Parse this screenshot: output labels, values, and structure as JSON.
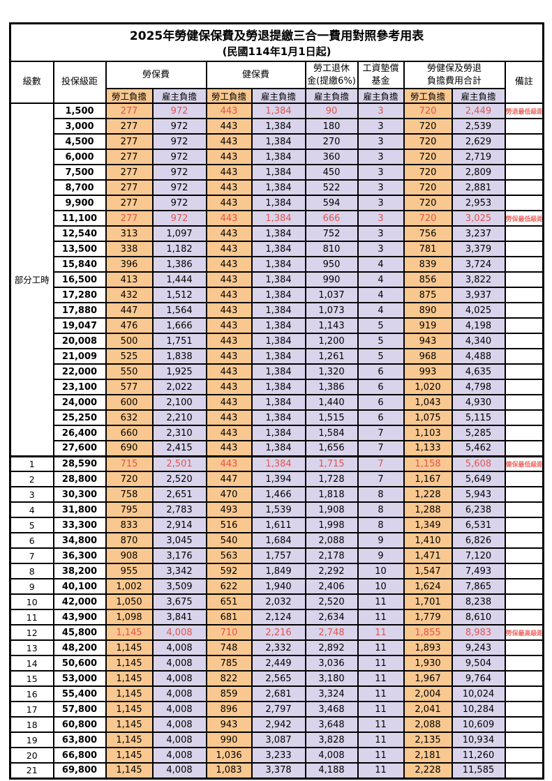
{
  "title": "2025年勞健保保費及勞退提繳三合一費用對照參考用表",
  "subtitle": "(民國114年1月1日起)",
  "colors": {
    "employee_col_bg": "#F8C890",
    "employer_col_bg": "#D9D4EB",
    "highlight_value_red": "#E0554F",
    "remark_red": "#EF6A62",
    "border": "#000000"
  },
  "header": {
    "level": "級數",
    "bracket": "投保級距",
    "labor_insurance": "勞保費",
    "health_insurance": "健保費",
    "pension_line1": "勞工退休",
    "pension_line2": "金(提繳6%)",
    "wage_fund_line1": "工資墊償",
    "wage_fund_line2": "基金",
    "total_line1": "勞健保及勞退",
    "total_line2": "負擔費用合計",
    "remark": "備註",
    "employee_share": "勞工負擔",
    "employer_share": "雇主負擔"
  },
  "table": {
    "part_time_label": "部分工時",
    "part_time_span": 23,
    "section_break_index": 23,
    "columns": [
      "級數",
      "投保級距",
      "勞保費勞工負擔",
      "勞保費雇主負擔",
      "健保費勞工負擔",
      "健保費雇主負擔",
      "勞工退休金(提繳6%)雇主負擔",
      "工資墊償基金雇主負擔",
      "合計勞工負擔",
      "合計雇主負擔",
      "備註"
    ],
    "rows": [
      {
        "level": "",
        "bracket": "1,500",
        "values": [
          "277",
          "972",
          "443",
          "1,384",
          "90",
          "3",
          "720",
          "2,449"
        ],
        "remark": "勞退最低級距",
        "highlight": true
      },
      {
        "level": "",
        "bracket": "3,000",
        "values": [
          "277",
          "972",
          "443",
          "1,384",
          "180",
          "3",
          "720",
          "2,539"
        ],
        "remark": "",
        "highlight": false
      },
      {
        "level": "",
        "bracket": "4,500",
        "values": [
          "277",
          "972",
          "443",
          "1,384",
          "270",
          "3",
          "720",
          "2,629"
        ],
        "remark": "",
        "highlight": false
      },
      {
        "level": "",
        "bracket": "6,000",
        "values": [
          "277",
          "972",
          "443",
          "1,384",
          "360",
          "3",
          "720",
          "2,719"
        ],
        "remark": "",
        "highlight": false
      },
      {
        "level": "",
        "bracket": "7,500",
        "values": [
          "277",
          "972",
          "443",
          "1,384",
          "450",
          "3",
          "720",
          "2,809"
        ],
        "remark": "",
        "highlight": false
      },
      {
        "level": "",
        "bracket": "8,700",
        "values": [
          "277",
          "972",
          "443",
          "1,384",
          "522",
          "3",
          "720",
          "2,881"
        ],
        "remark": "",
        "highlight": false
      },
      {
        "level": "",
        "bracket": "9,900",
        "values": [
          "277",
          "972",
          "443",
          "1,384",
          "594",
          "3",
          "720",
          "2,953"
        ],
        "remark": "",
        "highlight": false
      },
      {
        "level": "",
        "bracket": "11,100",
        "values": [
          "277",
          "972",
          "443",
          "1,384",
          "666",
          "3",
          "720",
          "3,025"
        ],
        "remark": "勞保最低級距",
        "highlight": true
      },
      {
        "level": "",
        "bracket": "12,540",
        "values": [
          "313",
          "1,097",
          "443",
          "1,384",
          "752",
          "3",
          "756",
          "3,237"
        ],
        "remark": "",
        "highlight": false
      },
      {
        "level": "",
        "bracket": "13,500",
        "values": [
          "338",
          "1,182",
          "443",
          "1,384",
          "810",
          "3",
          "781",
          "3,379"
        ],
        "remark": "",
        "highlight": false
      },
      {
        "level": "",
        "bracket": "15,840",
        "values": [
          "396",
          "1,386",
          "443",
          "1,384",
          "950",
          "4",
          "839",
          "3,724"
        ],
        "remark": "",
        "highlight": false
      },
      {
        "level": "",
        "bracket": "16,500",
        "values": [
          "413",
          "1,444",
          "443",
          "1,384",
          "990",
          "4",
          "856",
          "3,822"
        ],
        "remark": "",
        "highlight": false
      },
      {
        "level": "",
        "bracket": "17,280",
        "values": [
          "432",
          "1,512",
          "443",
          "1,384",
          "1,037",
          "4",
          "875",
          "3,937"
        ],
        "remark": "",
        "highlight": false
      },
      {
        "level": "",
        "bracket": "17,880",
        "values": [
          "447",
          "1,564",
          "443",
          "1,384",
          "1,073",
          "4",
          "890",
          "4,025"
        ],
        "remark": "",
        "highlight": false
      },
      {
        "level": "",
        "bracket": "19,047",
        "values": [
          "476",
          "1,666",
          "443",
          "1,384",
          "1,143",
          "5",
          "919",
          "4,198"
        ],
        "remark": "",
        "highlight": false
      },
      {
        "level": "",
        "bracket": "20,008",
        "values": [
          "500",
          "1,751",
          "443",
          "1,384",
          "1,200",
          "5",
          "943",
          "4,340"
        ],
        "remark": "",
        "highlight": false
      },
      {
        "level": "",
        "bracket": "21,009",
        "values": [
          "525",
          "1,838",
          "443",
          "1,384",
          "1,261",
          "5",
          "968",
          "4,488"
        ],
        "remark": "",
        "highlight": false
      },
      {
        "level": "",
        "bracket": "22,000",
        "values": [
          "550",
          "1,925",
          "443",
          "1,384",
          "1,320",
          "6",
          "993",
          "4,635"
        ],
        "remark": "",
        "highlight": false
      },
      {
        "level": "",
        "bracket": "23,100",
        "values": [
          "577",
          "2,022",
          "443",
          "1,384",
          "1,386",
          "6",
          "1,020",
          "4,798"
        ],
        "remark": "",
        "highlight": false
      },
      {
        "level": "",
        "bracket": "24,000",
        "values": [
          "600",
          "2,100",
          "443",
          "1,384",
          "1,440",
          "6",
          "1,043",
          "4,930"
        ],
        "remark": "",
        "highlight": false
      },
      {
        "level": "",
        "bracket": "25,250",
        "values": [
          "632",
          "2,210",
          "443",
          "1,384",
          "1,515",
          "6",
          "1,075",
          "5,115"
        ],
        "remark": "",
        "highlight": false
      },
      {
        "level": "",
        "bracket": "26,400",
        "values": [
          "660",
          "2,310",
          "443",
          "1,384",
          "1,584",
          "7",
          "1,103",
          "5,285"
        ],
        "remark": "",
        "highlight": false
      },
      {
        "level": "",
        "bracket": "27,600",
        "values": [
          "690",
          "2,415",
          "443",
          "1,384",
          "1,656",
          "7",
          "1,133",
          "5,462"
        ],
        "remark": "",
        "highlight": false
      },
      {
        "level": "1",
        "bracket": "28,590",
        "values": [
          "715",
          "2,501",
          "443",
          "1,384",
          "1,715",
          "7",
          "1,158",
          "5,608"
        ],
        "remark": "健保最低級距",
        "highlight": true
      },
      {
        "level": "2",
        "bracket": "28,800",
        "values": [
          "720",
          "2,520",
          "447",
          "1,394",
          "1,728",
          "7",
          "1,167",
          "5,649"
        ],
        "remark": "",
        "highlight": false
      },
      {
        "level": "3",
        "bracket": "30,300",
        "values": [
          "758",
          "2,651",
          "470",
          "1,466",
          "1,818",
          "8",
          "1,228",
          "5,943"
        ],
        "remark": "",
        "highlight": false
      },
      {
        "level": "4",
        "bracket": "31,800",
        "values": [
          "795",
          "2,783",
          "493",
          "1,539",
          "1,908",
          "8",
          "1,288",
          "6,238"
        ],
        "remark": "",
        "highlight": false
      },
      {
        "level": "5",
        "bracket": "33,300",
        "values": [
          "833",
          "2,914",
          "516",
          "1,611",
          "1,998",
          "8",
          "1,349",
          "6,531"
        ],
        "remark": "",
        "highlight": false
      },
      {
        "level": "6",
        "bracket": "34,800",
        "values": [
          "870",
          "3,045",
          "540",
          "1,684",
          "2,088",
          "9",
          "1,410",
          "6,826"
        ],
        "remark": "",
        "highlight": false
      },
      {
        "level": "7",
        "bracket": "36,300",
        "values": [
          "908",
          "3,176",
          "563",
          "1,757",
          "2,178",
          "9",
          "1,471",
          "7,120"
        ],
        "remark": "",
        "highlight": false
      },
      {
        "level": "8",
        "bracket": "38,200",
        "values": [
          "955",
          "3,342",
          "592",
          "1,849",
          "2,292",
          "10",
          "1,547",
          "7,493"
        ],
        "remark": "",
        "highlight": false
      },
      {
        "level": "9",
        "bracket": "40,100",
        "values": [
          "1,002",
          "3,509",
          "622",
          "1,940",
          "2,406",
          "10",
          "1,624",
          "7,865"
        ],
        "remark": "",
        "highlight": false
      },
      {
        "level": "10",
        "bracket": "42,000",
        "values": [
          "1,050",
          "3,675",
          "651",
          "2,032",
          "2,520",
          "11",
          "1,701",
          "8,238"
        ],
        "remark": "",
        "highlight": false
      },
      {
        "level": "11",
        "bracket": "43,900",
        "values": [
          "1,098",
          "3,841",
          "681",
          "2,124",
          "2,634",
          "11",
          "1,779",
          "8,610"
        ],
        "remark": "",
        "highlight": false
      },
      {
        "level": "12",
        "bracket": "45,800",
        "values": [
          "1,145",
          "4,008",
          "710",
          "2,216",
          "2,748",
          "11",
          "1,855",
          "8,983"
        ],
        "remark": "勞保最高級距",
        "highlight": true
      },
      {
        "level": "13",
        "bracket": "48,200",
        "values": [
          "1,145",
          "4,008",
          "748",
          "2,332",
          "2,892",
          "11",
          "1,893",
          "9,243"
        ],
        "remark": "",
        "highlight": false
      },
      {
        "level": "14",
        "bracket": "50,600",
        "values": [
          "1,145",
          "4,008",
          "785",
          "2,449",
          "3,036",
          "11",
          "1,930",
          "9,504"
        ],
        "remark": "",
        "highlight": false
      },
      {
        "level": "15",
        "bracket": "53,000",
        "values": [
          "1,145",
          "4,008",
          "822",
          "2,565",
          "3,180",
          "11",
          "1,967",
          "9,764"
        ],
        "remark": "",
        "highlight": false
      },
      {
        "level": "16",
        "bracket": "55,400",
        "values": [
          "1,145",
          "4,008",
          "859",
          "2,681",
          "3,324",
          "11",
          "2,004",
          "10,024"
        ],
        "remark": "",
        "highlight": false
      },
      {
        "level": "17",
        "bracket": "57,800",
        "values": [
          "1,145",
          "4,008",
          "896",
          "2,797",
          "3,468",
          "11",
          "2,041",
          "10,284"
        ],
        "remark": "",
        "highlight": false
      },
      {
        "level": "18",
        "bracket": "60,800",
        "values": [
          "1,145",
          "4,008",
          "943",
          "2,942",
          "3,648",
          "11",
          "2,088",
          "10,609"
        ],
        "remark": "",
        "highlight": false
      },
      {
        "level": "19",
        "bracket": "63,800",
        "values": [
          "1,145",
          "4,008",
          "990",
          "3,087",
          "3,828",
          "11",
          "2,135",
          "10,934"
        ],
        "remark": "",
        "highlight": false
      },
      {
        "level": "20",
        "bracket": "66,800",
        "values": [
          "1,145",
          "4,008",
          "1,036",
          "3,233",
          "4,008",
          "11",
          "2,181",
          "11,260"
        ],
        "remark": "",
        "highlight": false
      },
      {
        "level": "21",
        "bracket": "69,800",
        "values": [
          "1,145",
          "4,008",
          "1,083",
          "3,378",
          "4,188",
          "11",
          "2,228",
          "11,585"
        ],
        "remark": "",
        "highlight": false
      }
    ]
  }
}
